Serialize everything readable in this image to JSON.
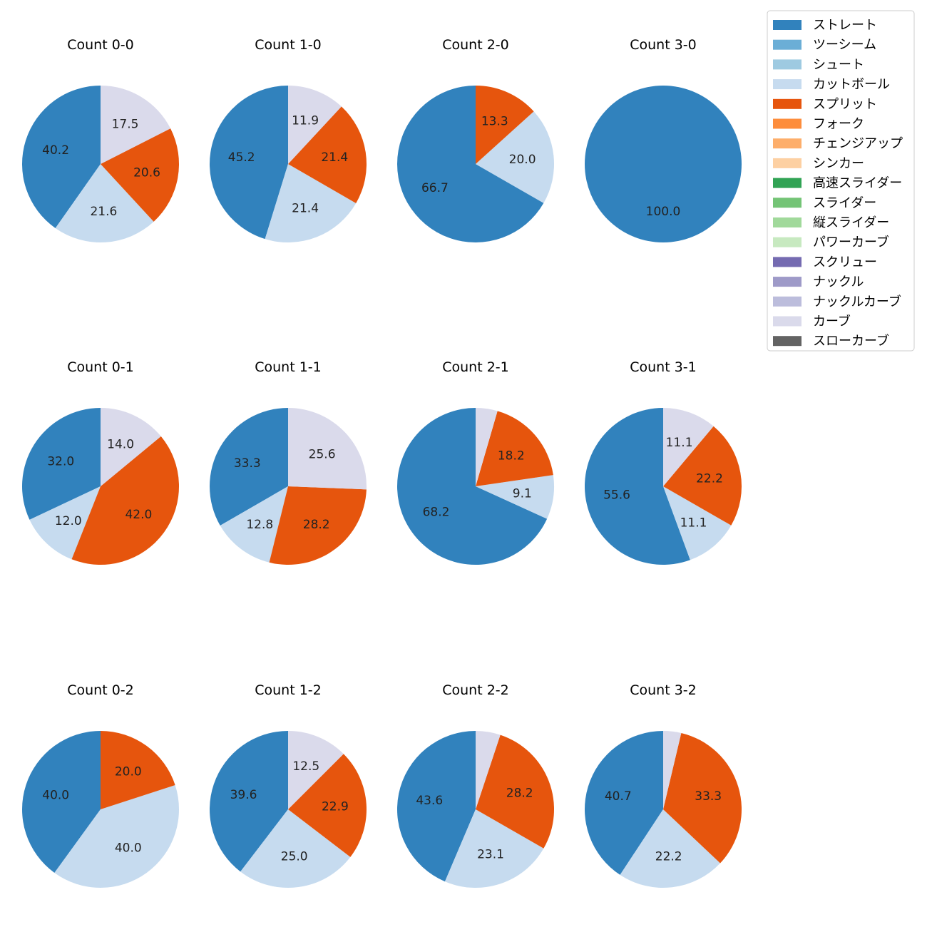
{
  "legend": {
    "items": [
      {
        "label": "ストレート",
        "color": "#3182bd"
      },
      {
        "label": "ツーシーム",
        "color": "#6baed6"
      },
      {
        "label": "シュート",
        "color": "#9ecae1"
      },
      {
        "label": "カットボール",
        "color": "#c6dbef"
      },
      {
        "label": "スプリット",
        "color": "#e6550d"
      },
      {
        "label": "フォーク",
        "color": "#fd8d3c"
      },
      {
        "label": "チェンジアップ",
        "color": "#fdae6b"
      },
      {
        "label": "シンカー",
        "color": "#fdd0a2"
      },
      {
        "label": "高速スライダー",
        "color": "#31a354"
      },
      {
        "label": "スライダー",
        "color": "#74c476"
      },
      {
        "label": "縦スライダー",
        "color": "#a1d99b"
      },
      {
        "label": "パワーカーブ",
        "color": "#c7e9c0"
      },
      {
        "label": "スクリュー",
        "color": "#756bb1"
      },
      {
        "label": "ナックル",
        "color": "#9e9ac8"
      },
      {
        "label": "ナックルカーブ",
        "color": "#bcbddc"
      },
      {
        "label": "カーブ",
        "color": "#dadaeb"
      },
      {
        "label": "スローカーブ",
        "color": "#636363"
      }
    ]
  },
  "chart_data": [
    {
      "type": "pie",
      "title": "Count 0-0",
      "slices": [
        {
          "category": "ストレート",
          "value": 40.2,
          "label": "40.2"
        },
        {
          "category": "カットボール",
          "value": 21.6,
          "label": "21.6"
        },
        {
          "category": "スプリット",
          "value": 20.6,
          "label": "20.6"
        },
        {
          "category": "カーブ",
          "value": 17.5,
          "label": "17.5"
        }
      ]
    },
    {
      "type": "pie",
      "title": "Count 1-0",
      "slices": [
        {
          "category": "ストレート",
          "value": 45.2,
          "label": "45.2"
        },
        {
          "category": "カットボール",
          "value": 21.4,
          "label": "21.4"
        },
        {
          "category": "スプリット",
          "value": 21.4,
          "label": "21.4"
        },
        {
          "category": "カーブ",
          "value": 11.9,
          "label": "11.9"
        }
      ]
    },
    {
      "type": "pie",
      "title": "Count 2-0",
      "slices": [
        {
          "category": "ストレート",
          "value": 66.7,
          "label": "66.7"
        },
        {
          "category": "カットボール",
          "value": 20.0,
          "label": "20.0"
        },
        {
          "category": "スプリット",
          "value": 13.3,
          "label": "13.3"
        }
      ]
    },
    {
      "type": "pie",
      "title": "Count 3-0",
      "slices": [
        {
          "category": "ストレート",
          "value": 100.0,
          "label": "100.0"
        }
      ]
    },
    {
      "type": "pie",
      "title": "Count 0-1",
      "slices": [
        {
          "category": "ストレート",
          "value": 32.0,
          "label": "32.0"
        },
        {
          "category": "カットボール",
          "value": 12.0,
          "label": "12.0"
        },
        {
          "category": "スプリット",
          "value": 42.0,
          "label": "42.0"
        },
        {
          "category": "カーブ",
          "value": 14.0,
          "label": "14.0"
        }
      ]
    },
    {
      "type": "pie",
      "title": "Count 1-1",
      "slices": [
        {
          "category": "ストレート",
          "value": 33.3,
          "label": "33.3"
        },
        {
          "category": "カットボール",
          "value": 12.8,
          "label": "12.8"
        },
        {
          "category": "スプリット",
          "value": 28.2,
          "label": "28.2"
        },
        {
          "category": "カーブ",
          "value": 25.6,
          "label": "25.6"
        }
      ]
    },
    {
      "type": "pie",
      "title": "Count 2-1",
      "slices": [
        {
          "category": "ストレート",
          "value": 68.2,
          "label": "68.2"
        },
        {
          "category": "カットボール",
          "value": 9.1,
          "label": "9.1"
        },
        {
          "category": "スプリット",
          "value": 18.2,
          "label": "18.2"
        },
        {
          "category": "カーブ",
          "value": 4.5,
          "label": ""
        }
      ]
    },
    {
      "type": "pie",
      "title": "Count 3-1",
      "slices": [
        {
          "category": "ストレート",
          "value": 55.6,
          "label": "55.6"
        },
        {
          "category": "カットボール",
          "value": 11.1,
          "label": "11.1"
        },
        {
          "category": "スプリット",
          "value": 22.2,
          "label": "22.2"
        },
        {
          "category": "カーブ",
          "value": 11.1,
          "label": "11.1"
        }
      ]
    },
    {
      "type": "pie",
      "title": "Count 0-2",
      "slices": [
        {
          "category": "ストレート",
          "value": 40.0,
          "label": "40.0"
        },
        {
          "category": "カットボール",
          "value": 40.0,
          "label": "40.0"
        },
        {
          "category": "スプリット",
          "value": 20.0,
          "label": "20.0"
        }
      ]
    },
    {
      "type": "pie",
      "title": "Count 1-2",
      "slices": [
        {
          "category": "ストレート",
          "value": 39.6,
          "label": "39.6"
        },
        {
          "category": "カットボール",
          "value": 25.0,
          "label": "25.0"
        },
        {
          "category": "スプリット",
          "value": 22.9,
          "label": "22.9"
        },
        {
          "category": "カーブ",
          "value": 12.5,
          "label": "12.5"
        }
      ]
    },
    {
      "type": "pie",
      "title": "Count 2-2",
      "slices": [
        {
          "category": "ストレート",
          "value": 43.6,
          "label": "43.6"
        },
        {
          "category": "カットボール",
          "value": 23.1,
          "label": "23.1"
        },
        {
          "category": "スプリット",
          "value": 28.2,
          "label": "28.2"
        },
        {
          "category": "カーブ",
          "value": 5.1,
          "label": ""
        }
      ]
    },
    {
      "type": "pie",
      "title": "Count 3-2",
      "slices": [
        {
          "category": "ストレート",
          "value": 40.7,
          "label": "40.7"
        },
        {
          "category": "カットボール",
          "value": 22.2,
          "label": "22.2"
        },
        {
          "category": "スプリット",
          "value": 33.3,
          "label": "33.3"
        },
        {
          "category": "カーブ",
          "value": 3.7,
          "label": ""
        }
      ]
    }
  ]
}
